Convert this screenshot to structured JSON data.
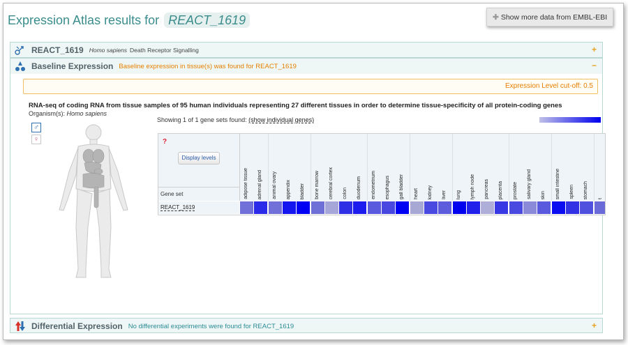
{
  "header": {
    "title_prefix": "Expression Atlas results for",
    "term": "REACT_1619",
    "show_more": "Show more data from EMBL-EBI"
  },
  "panels": {
    "reactome": {
      "title": "REACT_1619",
      "species": "Homo sapiens",
      "description": "Death Receptor Signalling",
      "toggle": "+"
    },
    "baseline": {
      "title": "Baseline Expression",
      "subtitle": "Baseline expression in tissue(s) was found for REACT_1619",
      "toggle": "−",
      "cutoff": "Expression Level cut-off: 0.5",
      "experiment_title": "RNA-seq of coding RNA from tissue samples of 95 human individuals representing 27 different tissues in order to determine tissue-specificity of all protein-coding genes",
      "organism_label": "Organism(s):",
      "organism": "Homo sapiens",
      "showing_prefix": "Showing 1 of 1 gene sets found:",
      "show_individual": "(show individual genes)",
      "display_levels": "Display levels",
      "gene_set_header": "Gene set",
      "row_label": "REACT_1619",
      "question_mark": "?",
      "male_symbol": "♂",
      "female_symbol": "♀"
    },
    "differential": {
      "title": "Differential Expression",
      "subtitle": "No differential experiments were found for REACT_1619",
      "toggle": "+"
    }
  },
  "tissues": [
    {
      "name": "adipose tissue",
      "color": "#7070d8"
    },
    {
      "name": "adrenal gland",
      "color": "#2a2ae8"
    },
    {
      "name": "animal ovary",
      "color": "#7070d8"
    },
    {
      "name": "appendix",
      "color": "#1515f0"
    },
    {
      "name": "bladder",
      "color": "#0000f5"
    },
    {
      "name": "bone marrow",
      "color": "#6f6fd8"
    },
    {
      "name": "cerebral cortex",
      "color": "#a6a6d8"
    },
    {
      "name": "colon",
      "color": "#2f2fe6"
    },
    {
      "name": "duodenum",
      "color": "#1c1cee"
    },
    {
      "name": "endometrium",
      "color": "#5a5ade"
    },
    {
      "name": "esophagus",
      "color": "#4848e0"
    },
    {
      "name": "gall bladder",
      "color": "#0000f2"
    },
    {
      "name": "heart",
      "color": "#a8a8d4"
    },
    {
      "name": "kidney",
      "color": "#4a4ae0"
    },
    {
      "name": "liver",
      "color": "#5c5cdc"
    },
    {
      "name": "lung",
      "color": "#0000ee"
    },
    {
      "name": "lymph node",
      "color": "#2020ea"
    },
    {
      "name": "pancreas",
      "color": "#aeaed8"
    },
    {
      "name": "placenta",
      "color": "#3838e4"
    },
    {
      "name": "prostate",
      "color": "#4a4ae0"
    },
    {
      "name": "salivary gland",
      "color": "#8a8ad8"
    },
    {
      "name": "skin",
      "color": "#5a5ade"
    },
    {
      "name": "small intestine",
      "color": "#0c0cf0"
    },
    {
      "name": "spleen",
      "color": "#3232e4"
    },
    {
      "name": "stomach",
      "color": "#5050de"
    },
    {
      "name": "t",
      "color": "#6a6ad8"
    }
  ],
  "colors": {
    "accent": "#3b8d8d",
    "orange": "#e67e00",
    "heat_max": "#0000ee",
    "heat_min": "#c0c0e8"
  }
}
